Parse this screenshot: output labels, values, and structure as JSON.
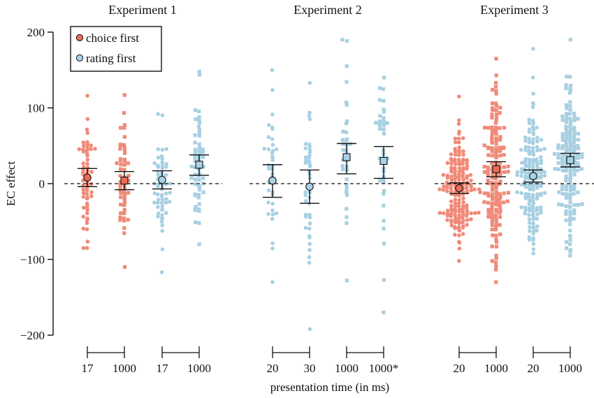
{
  "chart_data": {
    "type": "scatter",
    "ylabel": "EC effect",
    "xlabel": "presentation time (in ms)",
    "ylim": [
      -200,
      200
    ],
    "yticks": [
      -200,
      -100,
      0,
      100,
      200
    ],
    "ytick_labels": [
      "−200",
      "−100",
      "0",
      "100",
      "200"
    ],
    "reference_line_y": 0,
    "legend": {
      "position": "top-left",
      "entries": [
        {
          "label": "choice first",
          "color": "#f08a78",
          "marker": "circle"
        },
        {
          "label": "rating first",
          "color": "#a8d0e2",
          "marker": "circle"
        }
      ]
    },
    "colors": {
      "choice_first": "#f08a78",
      "rating_first": "#a8d0e2",
      "mean_choice": "#ee6a55",
      "mean_rating": "#a9d2e6"
    },
    "panels": [
      {
        "title": "Experiment 1",
        "groups": [
          {
            "label": "17",
            "series": "choice first",
            "marker": "circle",
            "mean": 8,
            "ci": [
              -4,
              20
            ],
            "n": 60,
            "range": [
              -85,
              116
            ]
          },
          {
            "label": "1000",
            "series": "choice first",
            "marker": "square",
            "mean": 4,
            "ci": [
              -8,
              16
            ],
            "n": 55,
            "range": [
              -110,
              117
            ]
          },
          {
            "label": "17",
            "series": "rating first",
            "marker": "circle",
            "mean": 5,
            "ci": [
              -7,
              17
            ],
            "n": 60,
            "range": [
              -117,
              92
            ]
          },
          {
            "label": "1000",
            "series": "rating first",
            "marker": "square",
            "mean": 25,
            "ci": [
              11,
              38
            ],
            "n": 60,
            "range": [
              -80,
              148
            ]
          }
        ]
      },
      {
        "title": "Experiment 2",
        "groups": [
          {
            "label": "20",
            "series": "rating first",
            "marker": "circle",
            "mean": 4,
            "ci": [
              -18,
              25
            ],
            "n": 40,
            "range": [
              -130,
              150
            ]
          },
          {
            "label": "30",
            "series": "rating first",
            "marker": "circle",
            "mean": -4,
            "ci": [
              -26,
              18
            ],
            "n": 42,
            "range": [
              -192,
              133
            ]
          },
          {
            "label": "1000",
            "series": "rating first",
            "marker": "square",
            "mean": 35,
            "ci": [
              13,
              53
            ],
            "n": 36,
            "range": [
              -128,
              190
            ]
          },
          {
            "label": "1000*",
            "series": "rating first",
            "marker": "square",
            "mean": 30,
            "ci": [
              7,
              49
            ],
            "n": 40,
            "range": [
              -170,
              140
            ]
          }
        ]
      },
      {
        "title": "Experiment 3",
        "groups": [
          {
            "label": "20",
            "series": "choice first",
            "marker": "circle",
            "mean": -6,
            "ci": [
              -13,
              1
            ],
            "n": 170,
            "range": [
              -102,
              115
            ]
          },
          {
            "label": "1000",
            "series": "choice first",
            "marker": "square",
            "mean": 19,
            "ci": [
              9,
              29
            ],
            "n": 165,
            "range": [
              -130,
              165
            ]
          },
          {
            "label": "20",
            "series": "rating first",
            "marker": "circle",
            "mean": 10,
            "ci": [
              2,
              18
            ],
            "n": 165,
            "range": [
              -92,
              178
            ]
          },
          {
            "label": "1000",
            "series": "rating first",
            "marker": "square",
            "mean": 31,
            "ci": [
              22,
              40
            ],
            "n": 165,
            "range": [
              -95,
              190
            ]
          }
        ]
      }
    ]
  }
}
